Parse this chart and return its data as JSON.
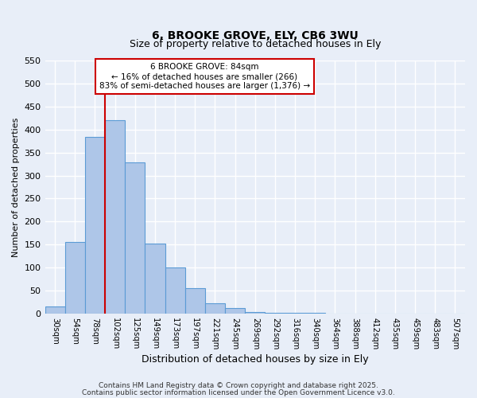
{
  "title1": "6, BROOKE GROVE, ELY, CB6 3WU",
  "title2": "Size of property relative to detached houses in Ely",
  "xlabel": "Distribution of detached houses by size in Ely",
  "ylabel": "Number of detached properties",
  "bar_labels": [
    "30sqm",
    "54sqm",
    "78sqm",
    "102sqm",
    "125sqm",
    "149sqm",
    "173sqm",
    "197sqm",
    "221sqm",
    "245sqm",
    "269sqm",
    "292sqm",
    "316sqm",
    "340sqm",
    "364sqm",
    "388sqm",
    "412sqm",
    "435sqm",
    "459sqm",
    "483sqm",
    "507sqm"
  ],
  "bar_values": [
    15,
    155,
    385,
    420,
    328,
    152,
    100,
    55,
    22,
    12,
    3,
    2,
    1,
    1,
    0,
    0,
    0,
    0,
    0,
    0,
    0
  ],
  "bar_color": "#aec6e8",
  "bar_edgecolor": "#5b9bd5",
  "vline_color": "#cc0000",
  "annotation_title": "6 BROOKE GROVE: 84sqm",
  "annotation_line1": "← 16% of detached houses are smaller (266)",
  "annotation_line2": "83% of semi-detached houses are larger (1,376) →",
  "annotation_box_edgecolor": "#cc0000",
  "annotation_box_facecolor": "#ffffff",
  "ylim": [
    0,
    550
  ],
  "yticks": [
    0,
    50,
    100,
    150,
    200,
    250,
    300,
    350,
    400,
    450,
    500,
    550
  ],
  "footer1": "Contains HM Land Registry data © Crown copyright and database right 2025.",
  "footer2": "Contains public sector information licensed under the Open Government Licence v3.0.",
  "background_color": "#e8eef8",
  "grid_color": "#ffffff"
}
